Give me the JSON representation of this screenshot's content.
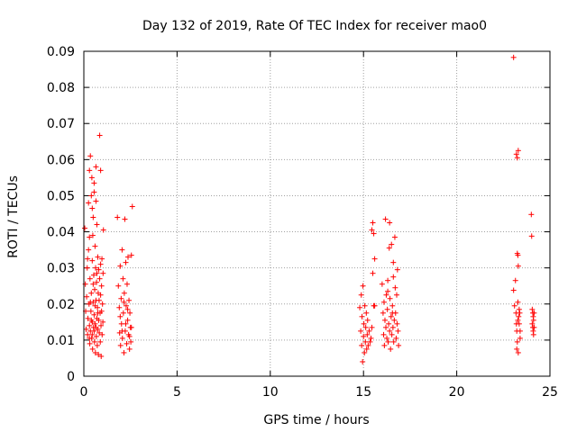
{
  "chart_data": {
    "type": "scatter",
    "title": "Day 132 of 2019, Rate Of TEC Index for receiver mao0",
    "xlabel": "GPS time / hours",
    "ylabel": "ROTI / TECUs",
    "xlim": [
      0,
      25
    ],
    "ylim": [
      0,
      0.09
    ],
    "xticks": [
      "0",
      "5",
      "10",
      "15",
      "20",
      "25"
    ],
    "yticks": [
      "0",
      "0.01",
      "0.02",
      "0.03",
      "0.04",
      "0.05",
      "0.06",
      "0.07",
      "0.08",
      "0.09"
    ],
    "grid": true,
    "marker": "+",
    "color": "#ff0000",
    "series": [
      {
        "name": "ROTI",
        "points": [
          [
            0.05,
            0.041
          ],
          [
            0.08,
            0.0255
          ],
          [
            0.1,
            0.018
          ],
          [
            0.12,
            0.013
          ],
          [
            0.15,
            0.022
          ],
          [
            0.18,
            0.03
          ],
          [
            0.2,
            0.0115
          ],
          [
            0.22,
            0.016
          ],
          [
            0.25,
            0.035
          ],
          [
            0.25,
            0.048
          ],
          [
            0.28,
            0.02
          ],
          [
            0.3,
            0.014
          ],
          [
            0.3,
            0.057
          ],
          [
            0.32,
            0.009
          ],
          [
            0.33,
            0.027
          ],
          [
            0.35,
            0.061
          ],
          [
            0.35,
            0.0125
          ],
          [
            0.38,
            0.018
          ],
          [
            0.4,
            0.05
          ],
          [
            0.4,
            0.023
          ],
          [
            0.42,
            0.0105
          ],
          [
            0.43,
            0.055
          ],
          [
            0.45,
            0.015
          ],
          [
            0.45,
            0.032
          ],
          [
            0.47,
            0.0075
          ],
          [
            0.48,
            0.039
          ],
          [
            0.5,
            0.0205
          ],
          [
            0.5,
            0.044
          ],
          [
            0.52,
            0.0135
          ],
          [
            0.53,
            0.028
          ],
          [
            0.55,
            0.051
          ],
          [
            0.55,
            0.017
          ],
          [
            0.57,
            0.0095
          ],
          [
            0.58,
            0.024
          ],
          [
            0.6,
            0.036
          ],
          [
            0.6,
            0.0145
          ],
          [
            0.62,
            0.0065
          ],
          [
            0.63,
            0.03
          ],
          [
            0.65,
            0.021
          ],
          [
            0.65,
            0.058
          ],
          [
            0.67,
            0.011
          ],
          [
            0.68,
            0.026
          ],
          [
            0.7,
            0.016
          ],
          [
            0.7,
            0.042
          ],
          [
            0.72,
            0.0085
          ],
          [
            0.73,
            0.019
          ],
          [
            0.75,
            0.033
          ],
          [
            0.75,
            0.013
          ],
          [
            0.77,
            0.023
          ],
          [
            0.78,
            0.006
          ],
          [
            0.8,
            0.0295
          ],
          [
            0.8,
            0.0155
          ],
          [
            0.82,
            0.021
          ],
          [
            0.83,
            0.012
          ],
          [
            0.85,
            0.0667
          ],
          [
            0.85,
            0.027
          ],
          [
            0.87,
            0.0175
          ],
          [
            0.88,
            0.0095
          ],
          [
            0.9,
            0.031
          ],
          [
            0.9,
            0.0225
          ],
          [
            0.92,
            0.014
          ],
          [
            0.93,
            0.0055
          ],
          [
            0.95,
            0.025
          ],
          [
            0.95,
            0.018
          ],
          [
            0.97,
            0.0325
          ],
          [
            0.98,
            0.0115
          ],
          [
            1.0,
            0.02
          ],
          [
            1.02,
            0.015
          ],
          [
            1.03,
            0.0285
          ],
          [
            1.05,
            0.0405
          ],
          [
            0.3,
            0.0105
          ],
          [
            0.35,
            0.0205
          ],
          [
            0.4,
            0.0155
          ],
          [
            0.45,
            0.0115
          ],
          [
            0.5,
            0.0255
          ],
          [
            0.55,
            0.0125
          ],
          [
            0.6,
            0.0195
          ],
          [
            0.65,
            0.0135
          ],
          [
            0.7,
            0.0285
          ],
          [
            0.75,
            0.0175
          ],
          [
            0.2,
            0.0325
          ],
          [
            0.3,
            0.0385
          ],
          [
            0.45,
            0.0465
          ],
          [
            0.55,
            0.0535
          ],
          [
            0.65,
            0.0485
          ],
          [
            0.9,
            0.057
          ],
          [
            1.8,
            0.044
          ],
          [
            1.85,
            0.025
          ],
          [
            1.9,
            0.019
          ],
          [
            1.92,
            0.012
          ],
          [
            1.95,
            0.0305
          ],
          [
            1.97,
            0.0085
          ],
          [
            2.0,
            0.0215
          ],
          [
            2.02,
            0.0145
          ],
          [
            2.05,
            0.035
          ],
          [
            2.07,
            0.0105
          ],
          [
            2.1,
            0.027
          ],
          [
            2.12,
            0.0175
          ],
          [
            2.15,
            0.0065
          ],
          [
            2.17,
            0.023
          ],
          [
            2.2,
            0.0435
          ],
          [
            2.22,
            0.0125
          ],
          [
            2.25,
            0.0315
          ],
          [
            2.27,
            0.0195
          ],
          [
            2.3,
            0.009
          ],
          [
            2.32,
            0.0255
          ],
          [
            2.35,
            0.0155
          ],
          [
            2.37,
            0.033
          ],
          [
            2.4,
            0.0115
          ],
          [
            2.42,
            0.021
          ],
          [
            2.45,
            0.0075
          ],
          [
            2.47,
            0.0175
          ],
          [
            2.5,
            0.0135
          ],
          [
            2.52,
            0.0095
          ],
          [
            2.55,
            0.0335
          ],
          [
            2.6,
            0.047
          ],
          [
            1.95,
            0.0165
          ],
          [
            2.05,
            0.0125
          ],
          [
            2.15,
            0.0205
          ],
          [
            2.25,
            0.0145
          ],
          [
            2.35,
            0.0185
          ],
          [
            2.45,
            0.011
          ],
          [
            2.55,
            0.0135
          ],
          [
            14.8,
            0.019
          ],
          [
            14.85,
            0.0125
          ],
          [
            14.88,
            0.0225
          ],
          [
            14.9,
            0.0085
          ],
          [
            14.92,
            0.0165
          ],
          [
            14.95,
            0.004
          ],
          [
            14.97,
            0.025
          ],
          [
            15.0,
            0.011
          ],
          [
            15.02,
            0.0145
          ],
          [
            15.05,
            0.0065
          ],
          [
            15.07,
            0.0195
          ],
          [
            15.1,
            0.0095
          ],
          [
            15.12,
            0.0135
          ],
          [
            15.15,
            0.0175
          ],
          [
            15.17,
            0.0075
          ],
          [
            15.2,
            0.0115
          ],
          [
            15.22,
            0.0155
          ],
          [
            15.25,
            0.0085
          ],
          [
            15.3,
            0.0125
          ],
          [
            15.35,
            0.0095
          ],
          [
            15.4,
            0.0105
          ],
          [
            15.45,
            0.0135
          ],
          [
            15.5,
            0.0285
          ],
          [
            15.55,
            0.0195
          ],
          [
            15.5,
            0.0425
          ],
          [
            15.55,
            0.0395
          ],
          [
            15.6,
            0.0325
          ],
          [
            15.45,
            0.0405
          ],
          [
            15.6,
            0.0195
          ],
          [
            16.0,
            0.0255
          ],
          [
            16.05,
            0.0175
          ],
          [
            16.08,
            0.0115
          ],
          [
            16.1,
            0.0205
          ],
          [
            16.12,
            0.0085
          ],
          [
            16.15,
            0.0155
          ],
          [
            16.18,
            0.0435
          ],
          [
            16.2,
            0.0135
          ],
          [
            16.22,
            0.0225
          ],
          [
            16.25,
            0.0105
          ],
          [
            16.28,
            0.0185
          ],
          [
            16.3,
            0.0265
          ],
          [
            16.32,
            0.0095
          ],
          [
            16.35,
            0.0145
          ],
          [
            16.38,
            0.0355
          ],
          [
            16.4,
            0.0125
          ],
          [
            16.42,
            0.0215
          ],
          [
            16.45,
            0.0075
          ],
          [
            16.48,
            0.0165
          ],
          [
            16.5,
            0.0365
          ],
          [
            16.52,
            0.0115
          ],
          [
            16.55,
            0.0195
          ],
          [
            16.58,
            0.0135
          ],
          [
            16.6,
            0.0275
          ],
          [
            16.62,
            0.0095
          ],
          [
            16.65,
            0.0155
          ],
          [
            16.68,
            0.0385
          ],
          [
            16.7,
            0.0245
          ],
          [
            16.72,
            0.0175
          ],
          [
            16.75,
            0.0105
          ],
          [
            16.78,
            0.0225
          ],
          [
            16.8,
            0.0145
          ],
          [
            16.82,
            0.0295
          ],
          [
            16.85,
            0.0125
          ],
          [
            16.88,
            0.0085
          ],
          [
            16.4,
            0.0425
          ],
          [
            16.6,
            0.0315
          ],
          [
            16.3,
            0.0235
          ],
          [
            16.55,
            0.0175
          ],
          [
            23.05,
            0.0883
          ],
          [
            23.05,
            0.0238
          ],
          [
            23.1,
            0.0195
          ],
          [
            23.15,
            0.0265
          ],
          [
            23.18,
            0.0175
          ],
          [
            23.2,
            0.0145
          ],
          [
            23.22,
            0.0125
          ],
          [
            23.25,
            0.0095
          ],
          [
            23.28,
            0.0155
          ],
          [
            23.3,
            0.0065
          ],
          [
            23.2,
            0.0615
          ],
          [
            23.25,
            0.0605
          ],
          [
            23.3,
            0.0625
          ],
          [
            23.25,
            0.034
          ],
          [
            23.28,
            0.0335
          ],
          [
            23.3,
            0.0305
          ],
          [
            23.35,
            0.0185
          ],
          [
            23.38,
            0.0175
          ],
          [
            23.4,
            0.0105
          ],
          [
            23.22,
            0.0075
          ],
          [
            23.4,
            0.0125
          ],
          [
            23.35,
            0.0145
          ],
          [
            23.32,
            0.0165
          ],
          [
            23.28,
            0.0205
          ],
          [
            24.0,
            0.0448
          ],
          [
            24.02,
            0.0388
          ],
          [
            24.05,
            0.0185
          ],
          [
            24.08,
            0.0175
          ],
          [
            24.1,
            0.0165
          ],
          [
            24.12,
            0.0155
          ],
          [
            24.05,
            0.0145
          ],
          [
            24.08,
            0.0135
          ],
          [
            24.1,
            0.0125
          ],
          [
            24.12,
            0.0115
          ],
          [
            24.15,
            0.0175
          ],
          [
            24.15,
            0.0135
          ]
        ]
      }
    ]
  }
}
